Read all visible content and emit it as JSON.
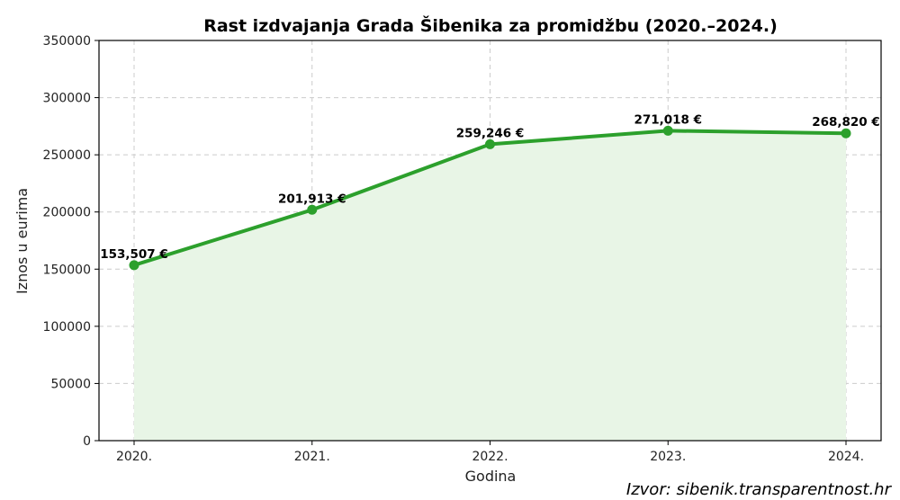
{
  "chart_data": {
    "type": "line",
    "title": "Rast izdvajanja Grada Šibenika za promidžbu (2020.–2024.)",
    "xlabel": "Godina",
    "ylabel": "Iznos u eurima",
    "categories": [
      "2020.",
      "2021.",
      "2022.",
      "2023.",
      "2024."
    ],
    "values": [
      153507,
      201913,
      259246,
      271018,
      268820
    ],
    "data_labels": [
      "153,507 €",
      "201,913 €",
      "259,246 €",
      "271,018 €",
      "268,820 €"
    ],
    "ylim": [
      0,
      350000
    ],
    "yticks": [
      0,
      50000,
      100000,
      150000,
      200000,
      250000,
      300000,
      350000
    ],
    "ytick_labels": [
      "0",
      "50000",
      "100000",
      "150000",
      "200000",
      "250000",
      "300000",
      "350000"
    ],
    "grid": true,
    "filled_area": true,
    "line_color": "#2ca02c",
    "fill_color": "#e8f5e6"
  },
  "source": "Izvor: sibenik.transparentnost.hr"
}
